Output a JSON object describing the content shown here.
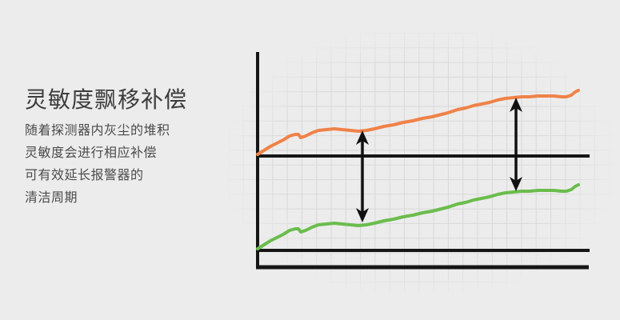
{
  "page": {
    "background": "#ececec"
  },
  "panel": {
    "title": "灵敏度飘移补偿",
    "description_lines": [
      "随着探测器内灰尘的堆积",
      "灵敏度会进行相应补偿",
      "可有效延长报警器的",
      "清洁周期"
    ]
  },
  "chart_data": {
    "type": "line",
    "title": "",
    "xlabel": "",
    "ylabel": "",
    "tick_labels": "none",
    "legend": "none",
    "grid": {
      "step": 18.3,
      "color": "#d9d9d9",
      "x_min": 285,
      "x_max": 766,
      "y_min": 40,
      "y_max": 366,
      "x_anchor": 322.5,
      "y_anchor": 41.5,
      "fade": {
        "cx": 526,
        "cy": 203,
        "rx": 252,
        "ry": 175,
        "solid_until": 0.72
      }
    },
    "axis_color": "#161616",
    "y_axis": {
      "x": 322,
      "y1": 65,
      "y2": 336,
      "width": 4
    },
    "reference_lines": [
      {
        "name": "upper-reference-line",
        "y": 195,
        "x1": 320,
        "x2": 737,
        "width": 4
      },
      {
        "name": "lower-reference-line",
        "y": 313,
        "x1": 320,
        "x2": 737,
        "width": 4
      },
      {
        "name": "x-axis-line",
        "y": 334,
        "x1": 320,
        "x2": 736,
        "width": 5
      }
    ],
    "series": [
      {
        "name": "upper-line-orange",
        "color": "#f08248",
        "width": 4,
        "points": [
          [
            322,
            193
          ],
          [
            330,
            188
          ],
          [
            338,
            183
          ],
          [
            346,
            179
          ],
          [
            354,
            175
          ],
          [
            362,
            170
          ],
          [
            369,
            168
          ],
          [
            373,
            168
          ],
          [
            376,
            172
          ],
          [
            382,
            170
          ],
          [
            390,
            166
          ],
          [
            398,
            163
          ],
          [
            408,
            162
          ],
          [
            418,
            161
          ],
          [
            428,
            162
          ],
          [
            438,
            163
          ],
          [
            448,
            164
          ],
          [
            458,
            163
          ],
          [
            468,
            161
          ],
          [
            480,
            158
          ],
          [
            492,
            156
          ],
          [
            504,
            153
          ],
          [
            516,
            151
          ],
          [
            528,
            148
          ],
          [
            540,
            146
          ],
          [
            552,
            143
          ],
          [
            560,
            141
          ],
          [
            566,
            139
          ],
          [
            572,
            137
          ],
          [
            582,
            135
          ],
          [
            592,
            132
          ],
          [
            602,
            130
          ],
          [
            612,
            128
          ],
          [
            622,
            125
          ],
          [
            632,
            123
          ],
          [
            642,
            122
          ],
          [
            652,
            121
          ],
          [
            662,
            121
          ],
          [
            672,
            120
          ],
          [
            682,
            120
          ],
          [
            692,
            120
          ],
          [
            702,
            121
          ],
          [
            708,
            121
          ],
          [
            714,
            119
          ],
          [
            719,
            115
          ],
          [
            723,
            113
          ]
        ]
      },
      {
        "name": "lower-line-green",
        "color": "#6abd4c",
        "width": 4,
        "points": [
          [
            322,
            311
          ],
          [
            330,
            306
          ],
          [
            338,
            301
          ],
          [
            346,
            297
          ],
          [
            354,
            293
          ],
          [
            362,
            288
          ],
          [
            369,
            286
          ],
          [
            373,
            286
          ],
          [
            376,
            290
          ],
          [
            382,
            288
          ],
          [
            390,
            284
          ],
          [
            398,
            281
          ],
          [
            408,
            280
          ],
          [
            418,
            279
          ],
          [
            428,
            280
          ],
          [
            438,
            281
          ],
          [
            448,
            282
          ],
          [
            458,
            281
          ],
          [
            468,
            279
          ],
          [
            480,
            276
          ],
          [
            492,
            274
          ],
          [
            504,
            271
          ],
          [
            516,
            269
          ],
          [
            528,
            266
          ],
          [
            540,
            264
          ],
          [
            552,
            261
          ],
          [
            560,
            259
          ],
          [
            566,
            257
          ],
          [
            572,
            255
          ],
          [
            582,
            253
          ],
          [
            592,
            250
          ],
          [
            602,
            248
          ],
          [
            612,
            246
          ],
          [
            622,
            243
          ],
          [
            632,
            241
          ],
          [
            642,
            240
          ],
          [
            652,
            239
          ],
          [
            662,
            239
          ],
          [
            672,
            238
          ],
          [
            682,
            238
          ],
          [
            692,
            238
          ],
          [
            702,
            239
          ],
          [
            708,
            239
          ],
          [
            714,
            237
          ],
          [
            719,
            233
          ],
          [
            723,
            231
          ]
        ]
      }
    ],
    "arrows": [
      {
        "name": "gap-arrow-left",
        "x": 453,
        "y_top": 163,
        "y_bottom": 278
      },
      {
        "name": "gap-arrow-right",
        "x": 645,
        "y_top": 122,
        "y_bottom": 239
      }
    ],
    "arrow_color": "#111111",
    "arrow_shaft_width": 3.5,
    "arrow_head": {
      "length": 18,
      "half_width": 8,
      "notch": 13
    }
  }
}
